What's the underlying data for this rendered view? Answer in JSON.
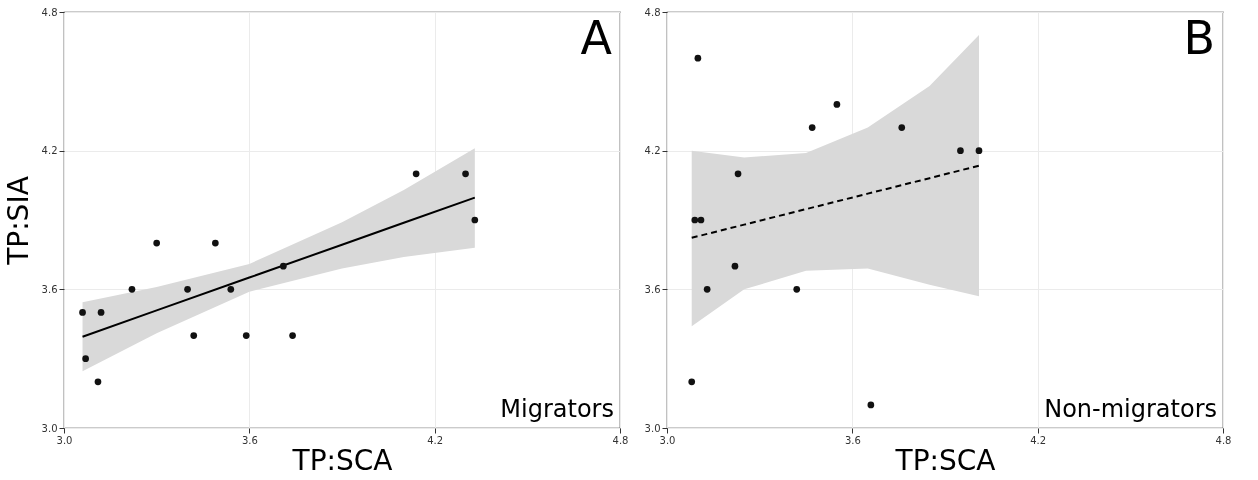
{
  "chart_data": [
    {
      "type": "scatter",
      "xlabel": "TP:SCA",
      "ylabel": "TP:SIA",
      "annotations": [
        "A",
        "Migrators"
      ],
      "xlim": [
        3.0,
        4.8
      ],
      "ylim": [
        3.0,
        4.8
      ],
      "xticks": [
        {
          "value": 3,
          "label": "3.0"
        },
        3.6,
        4.2,
        4.8
      ],
      "yticks": [
        {
          "value": 3,
          "label": "3.0"
        },
        3.6,
        4.2,
        4.8
      ],
      "grid": true,
      "series": [
        {
          "type": "line",
          "color": "#000000",
          "line_style": "solid",
          "x": [
            3.06,
            3.3,
            3.6,
            3.9,
            4.1,
            4.33
          ],
          "values": [
            3.395,
            3.509,
            3.651,
            3.793,
            3.888,
            3.997
          ],
          "lower": [
            3.246,
            3.41,
            3.59,
            3.69,
            3.74,
            3.78
          ],
          "upper": [
            3.544,
            3.61,
            3.71,
            3.89,
            4.03,
            4.21
          ]
        },
        {
          "color": "#111111",
          "marker": "circle",
          "x": [
            3.06,
            3.12,
            3.07,
            3.11,
            3.22,
            3.3,
            3.4,
            3.42,
            3.49,
            3.54,
            3.59,
            3.71,
            3.74,
            4.14,
            4.3,
            4.33
          ],
          "values": [
            3.5,
            3.5,
            3.3,
            3.2,
            3.6,
            3.8,
            3.6,
            3.4,
            3.8,
            3.6,
            3.4,
            3.7,
            3.4,
            4.1,
            4.1,
            3.9
          ]
        }
      ]
    },
    {
      "type": "scatter",
      "xlabel": "TP:SCA",
      "annotations": [
        "B",
        "Non-migrators"
      ],
      "xlim": [
        3.0,
        4.8
      ],
      "ylim": [
        3.0,
        4.8
      ],
      "xticks": [
        {
          "value": 3,
          "label": "3.0"
        },
        3.6,
        4.2,
        4.8
      ],
      "yticks": [
        {
          "value": 3,
          "label": "3.0"
        },
        3.6,
        4.2,
        4.8
      ],
      "grid": true,
      "series": [
        {
          "type": "line",
          "color": "#000000",
          "line_style": "dashed",
          "x": [
            3.08,
            3.25,
            3.45,
            3.65,
            3.85,
            4.01
          ],
          "values": [
            3.823,
            3.88,
            3.947,
            4.014,
            4.081,
            4.135
          ],
          "lower": [
            3.44,
            3.6,
            3.68,
            3.69,
            3.62,
            3.57
          ],
          "upper": [
            4.2,
            4.17,
            4.19,
            4.3,
            4.48,
            4.7
          ]
        },
        {
          "color": "#111111",
          "marker": "circle",
          "x": [
            3.08,
            3.1,
            3.09,
            3.11,
            3.13,
            3.22,
            3.23,
            3.42,
            3.47,
            3.55,
            3.66,
            3.76,
            3.95,
            4.01
          ],
          "values": [
            3.2,
            4.6,
            3.9,
            3.9,
            3.6,
            3.7,
            4.1,
            3.6,
            4.3,
            4.4,
            3.1,
            4.3,
            4.2,
            4.2
          ]
        }
      ]
    }
  ]
}
